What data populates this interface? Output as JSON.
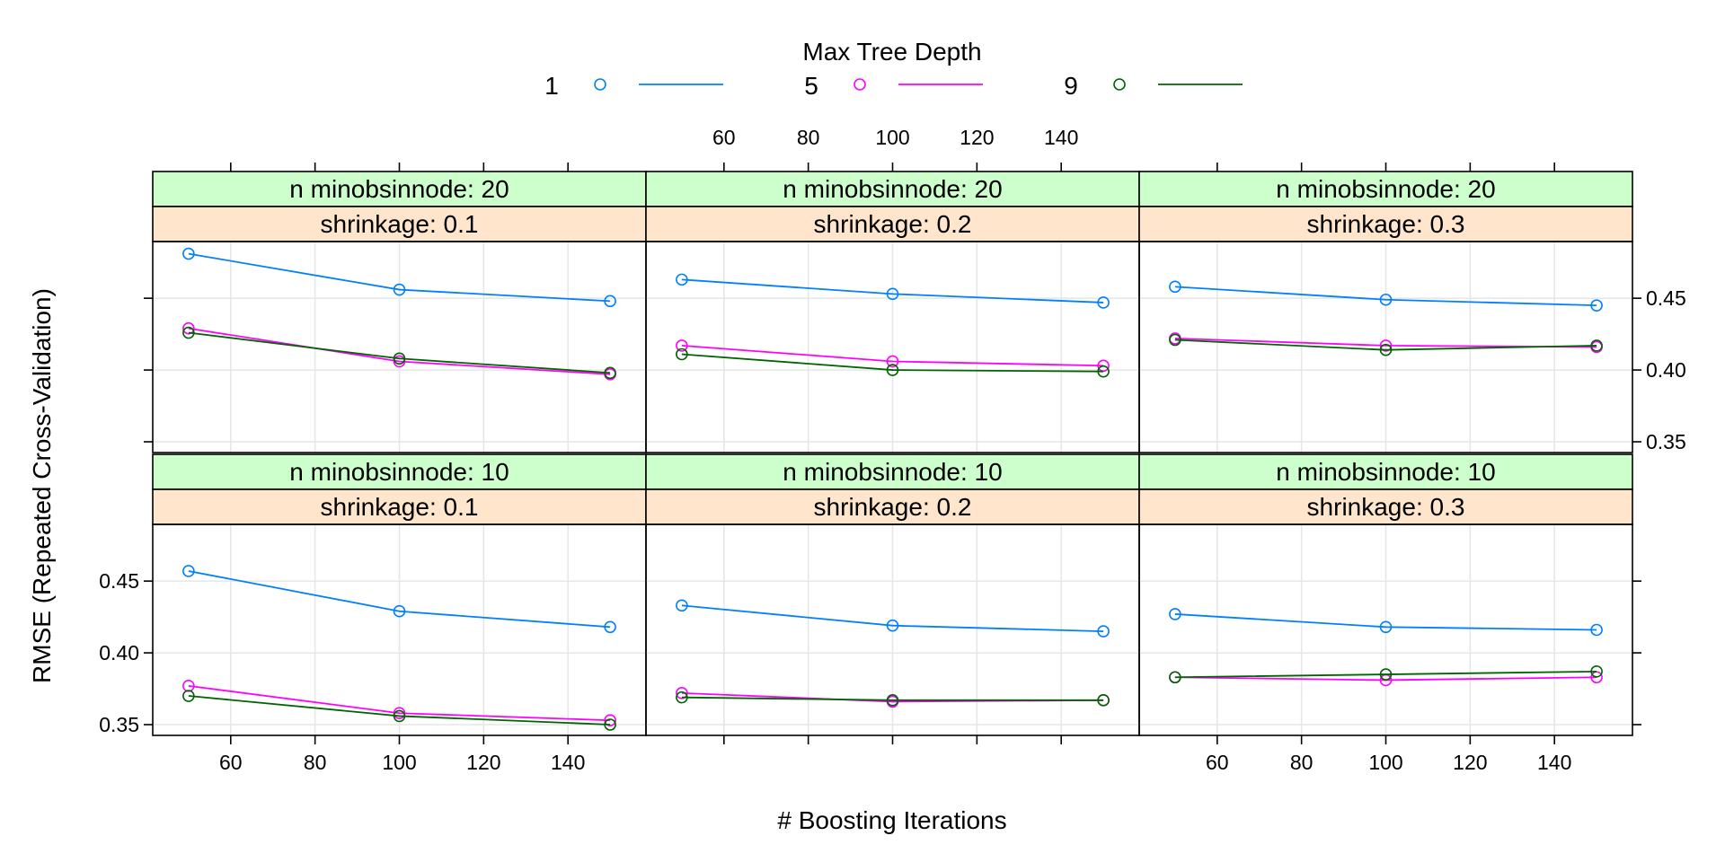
{
  "chart_data": {
    "type": "line",
    "xlabel": "# Boosting Iterations",
    "ylabel": "RMSE (Repeated Cross-Validation)",
    "legend_title": "Max Tree Depth",
    "legend_position": "top",
    "grid": true,
    "xlim": [
      41.5,
      158.5
    ],
    "ylim": [
      0.3425,
      0.4895
    ],
    "x_ticks": [
      60,
      80,
      100,
      120,
      140
    ],
    "y_ticks": [
      0.35,
      0.4,
      0.45
    ],
    "x_tick_labels": [
      "60",
      "80",
      "100",
      "120",
      "140"
    ],
    "y_tick_labels": [
      "0.35",
      "0.40",
      "0.45"
    ],
    "series_meta": [
      {
        "name": "1",
        "color": "#0080ff"
      },
      {
        "name": "5",
        "color": "#ff00ff"
      },
      {
        "name": "9",
        "color": "#006400"
      }
    ],
    "panels": [
      {
        "strip_top": "n minobsinnode: 20",
        "strip_bottom": "shrinkage: 0.1",
        "row": 0,
        "col": 0,
        "x": [
          50,
          100,
          150
        ],
        "series": [
          [
            0.481,
            0.456,
            0.448
          ],
          [
            0.429,
            0.406,
            0.397
          ],
          [
            0.426,
            0.408,
            0.398
          ]
        ]
      },
      {
        "strip_top": "n minobsinnode: 20",
        "strip_bottom": "shrinkage: 0.2",
        "row": 0,
        "col": 1,
        "x": [
          50,
          100,
          150
        ],
        "series": [
          [
            0.463,
            0.453,
            0.447
          ],
          [
            0.417,
            0.406,
            0.403
          ],
          [
            0.411,
            0.4,
            0.399
          ]
        ]
      },
      {
        "strip_top": "n minobsinnode: 20",
        "strip_bottom": "shrinkage: 0.3",
        "row": 0,
        "col": 2,
        "x": [
          50,
          100,
          150
        ],
        "series": [
          [
            0.458,
            0.449,
            0.445
          ],
          [
            0.422,
            0.417,
            0.416
          ],
          [
            0.421,
            0.414,
            0.417
          ]
        ]
      },
      {
        "strip_top": "n minobsinnode: 10",
        "strip_bottom": "shrinkage: 0.1",
        "row": 1,
        "col": 0,
        "x": [
          50,
          100,
          150
        ],
        "series": [
          [
            0.457,
            0.429,
            0.418
          ],
          [
            0.377,
            0.358,
            0.353
          ],
          [
            0.37,
            0.356,
            0.35
          ]
        ]
      },
      {
        "strip_top": "n minobsinnode: 10",
        "strip_bottom": "shrinkage: 0.2",
        "row": 1,
        "col": 1,
        "x": [
          50,
          100,
          150
        ],
        "series": [
          [
            0.433,
            0.419,
            0.415
          ],
          [
            0.372,
            0.366,
            0.367
          ],
          [
            0.369,
            0.367,
            0.367
          ]
        ]
      },
      {
        "strip_top": "n minobsinnode: 10",
        "strip_bottom": "shrinkage: 0.3",
        "row": 1,
        "col": 2,
        "x": [
          50,
          100,
          150
        ],
        "series": [
          [
            0.427,
            0.418,
            0.416
          ],
          [
            0.383,
            0.381,
            0.383
          ],
          [
            0.383,
            0.385,
            0.387
          ]
        ]
      }
    ]
  }
}
